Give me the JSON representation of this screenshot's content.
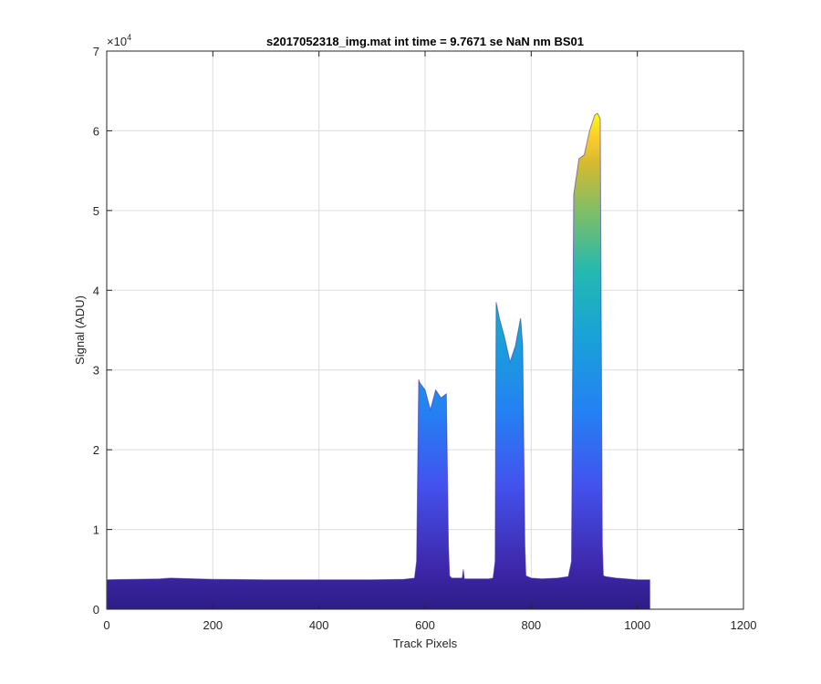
{
  "chart_data": {
    "type": "area",
    "title": "s2017052318_img.mat int time = 9.7671 se  NaN nm BS01",
    "xlabel": "Track Pixels",
    "ylabel": "Signal (ADU)",
    "xlim": [
      0,
      1200
    ],
    "ylim": [
      0,
      70000
    ],
    "grid": true,
    "x_ticks": [
      0,
      200,
      400,
      600,
      800,
      1000,
      1200
    ],
    "x_tick_labels": [
      "0",
      "200",
      "400",
      "600",
      "800",
      "1000",
      "1200"
    ],
    "y_ticks": [
      0,
      10000,
      20000,
      30000,
      40000,
      50000,
      60000,
      70000
    ],
    "y_tick_labels": [
      "0",
      "1",
      "2",
      "3",
      "4",
      "5",
      "6",
      "7"
    ],
    "y_exponent_base": "×10",
    "y_exponent_power": "4",
    "colormap": [
      "#3e26a8",
      "#4352ee",
      "#2481f3",
      "#19a2d8",
      "#23b9b0",
      "#7ebe67",
      "#d6ba30",
      "#fbcc2c",
      "#f9fb0e"
    ],
    "series": [
      {
        "x": [
          1,
          50,
          100,
          120,
          140,
          200,
          300,
          400,
          500,
          560,
          580,
          584,
          588,
          590,
          600,
          610,
          620,
          630,
          640,
          644,
          646,
          650,
          670,
          672,
          674,
          676,
          680,
          700,
          720,
          728,
          732,
          734,
          740,
          750,
          760,
          770,
          780,
          784,
          788,
          790,
          800,
          820,
          850,
          870,
          876,
          880,
          890,
          900,
          910,
          920,
          925,
          930,
          934,
          936,
          940,
          960,
          1000,
          1024
        ],
        "y": [
          3700,
          3750,
          3800,
          3900,
          3850,
          3750,
          3700,
          3700,
          3700,
          3750,
          3900,
          6000,
          28800,
          28400,
          27500,
          25000,
          27500,
          26500,
          27000,
          8000,
          4200,
          3900,
          3900,
          5000,
          3800,
          3800,
          3800,
          3800,
          3800,
          3900,
          6000,
          38500,
          36500,
          34000,
          31000,
          33000,
          36500,
          33000,
          8000,
          4200,
          3900,
          3800,
          3900,
          4100,
          6000,
          52000,
          56500,
          57000,
          60000,
          62000,
          62200,
          61500,
          8000,
          4200,
          4100,
          3900,
          3700,
          3700
        ]
      }
    ]
  }
}
